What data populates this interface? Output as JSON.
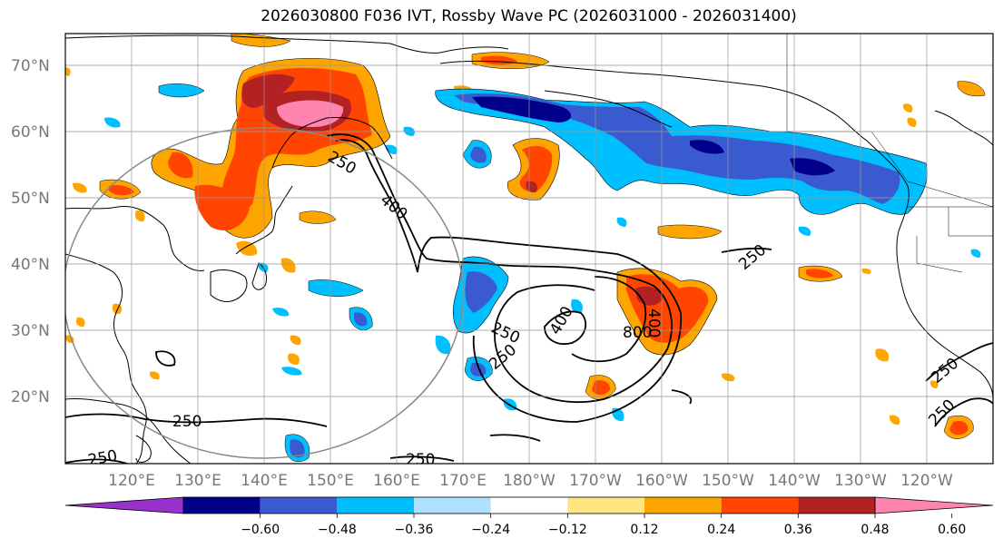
{
  "title": "2026030800 F036 IVT, Rossby Wave PC (2026031000 - 2026031400)",
  "lat_labels": [
    "70°N",
    "60°N",
    "50°N",
    "40°N",
    "30°N",
    "20°N"
  ],
  "lon_labels": [
    "120°E",
    "130°E",
    "140°E",
    "150°E",
    "160°E",
    "170°E",
    "180°W",
    "170°W",
    "160°W",
    "150°W",
    "140°W",
    "130°W",
    "120°W"
  ],
  "colorbar": {
    "ticks": [
      "−0.60",
      "−0.48",
      "−0.36",
      "−0.24",
      "−0.12",
      "0.12",
      "0.24",
      "0.36",
      "0.48",
      "0.60"
    ],
    "colors": [
      "#9932cc",
      "#00008b",
      "#3a5bcf",
      "#00bfff",
      "#b0e0ff",
      "#ffffff",
      "#ffe680",
      "#ffa500",
      "#ff4500",
      "#b22222",
      "#ff85b0"
    ]
  },
  "contour_labels": [
    "250",
    "400",
    "250",
    "250",
    "400",
    "800",
    "250",
    "250",
    "250",
    "250",
    "250",
    "400",
    "250"
  ]
}
